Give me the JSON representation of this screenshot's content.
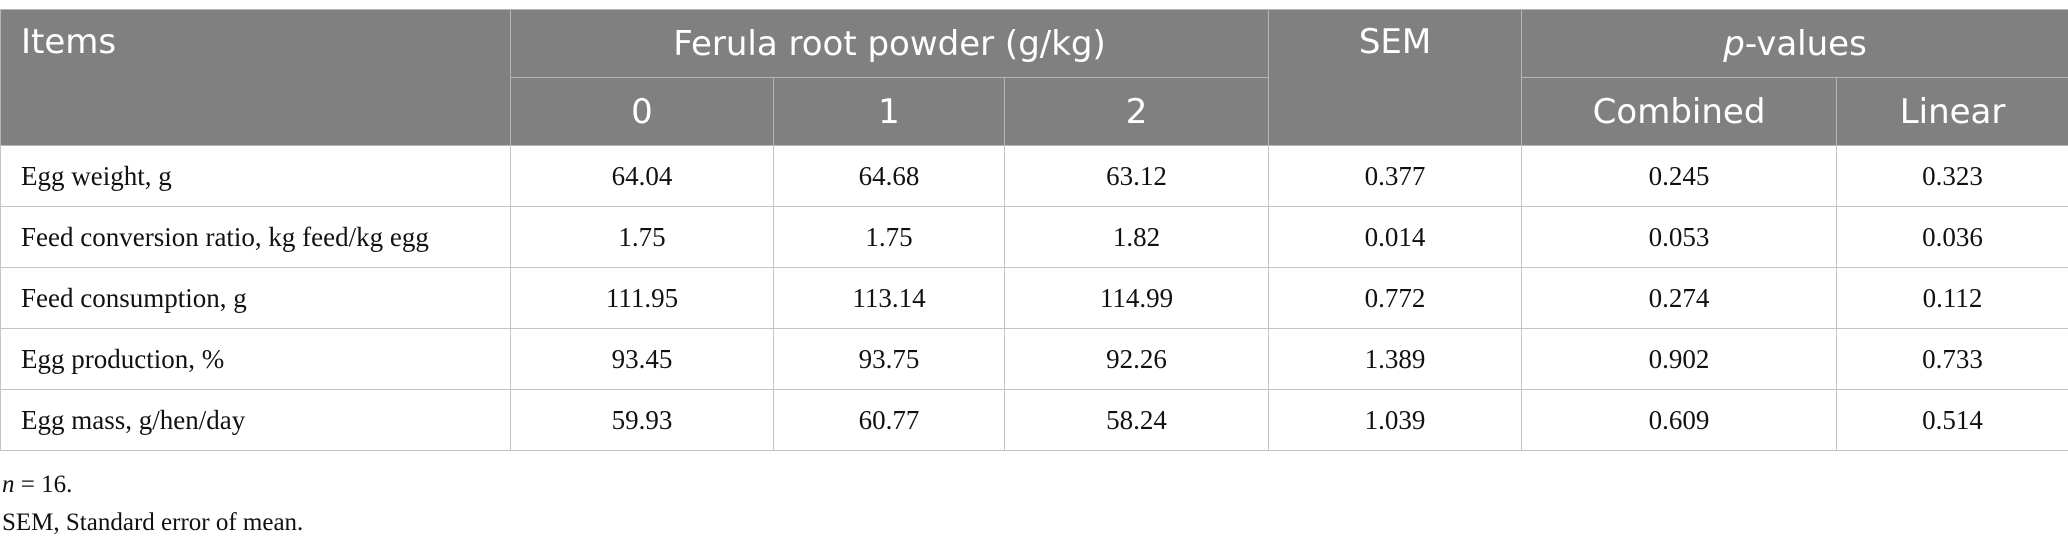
{
  "table": {
    "header": {
      "items": "Items",
      "group": "Ferula root powder (g/kg)",
      "levels": [
        "0",
        "1",
        "2"
      ],
      "sem": "SEM",
      "pvalues": {
        "italic": "p",
        "rest": "-values"
      },
      "pcols": [
        "Combined",
        "Linear"
      ]
    },
    "rows": [
      [
        "Egg weight, g",
        "64.04",
        "64.68",
        "63.12",
        "0.377",
        "0.245",
        "0.323"
      ],
      [
        "Feed conversion ratio, kg feed/kg egg",
        "1.75",
        "1.75",
        "1.82",
        "0.014",
        "0.053",
        "0.036"
      ],
      [
        "Feed consumption, g",
        "111.95",
        "113.14",
        "114.99",
        "0.772",
        "0.274",
        "0.112"
      ],
      [
        "Egg production, %",
        "93.45",
        "93.75",
        "92.26",
        "1.389",
        "0.902",
        "0.733"
      ],
      [
        "Egg mass, g/hen/day",
        "59.93",
        "60.77",
        "58.24",
        "1.039",
        "0.609",
        "0.514"
      ]
    ]
  },
  "footnotes": {
    "n": {
      "italic": "n",
      "rest": " = 16."
    },
    "sem": "SEM, Standard error of mean."
  }
}
